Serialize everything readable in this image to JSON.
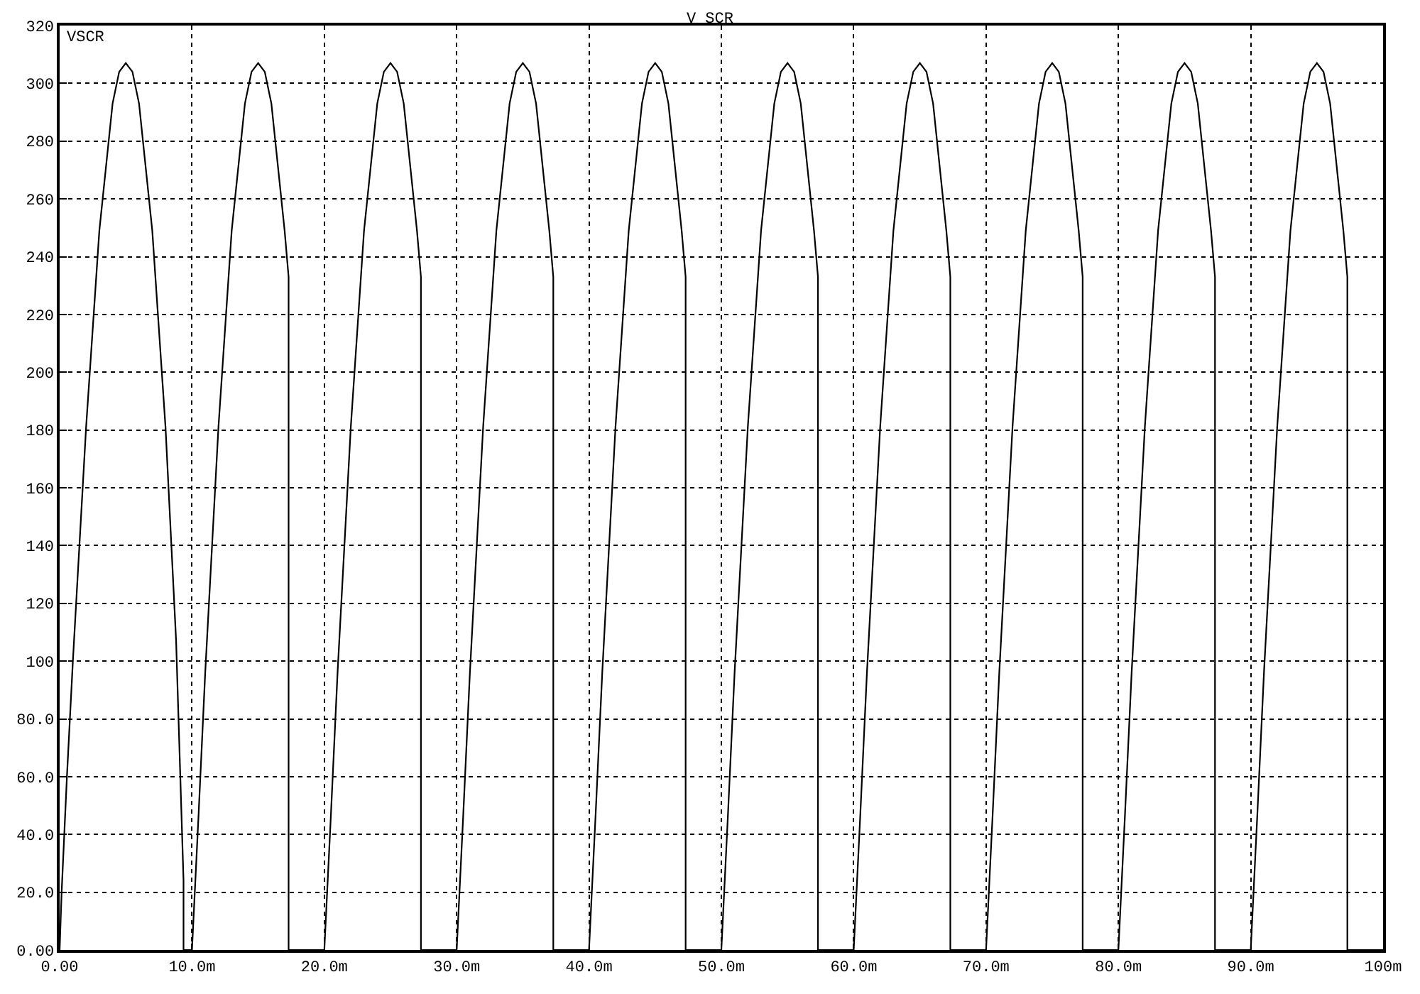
{
  "chart_data": {
    "type": "line",
    "title": "V SCR",
    "xlim": [
      0,
      100
    ],
    "ylim": [
      0,
      320
    ],
    "xticks": [
      {
        "value": 0,
        "label": "0.00"
      },
      {
        "value": 10,
        "label": "10.0m"
      },
      {
        "value": 20,
        "label": "20.0m"
      },
      {
        "value": 30,
        "label": "30.0m"
      },
      {
        "value": 40,
        "label": "40.0m"
      },
      {
        "value": 50,
        "label": "50.0m"
      },
      {
        "value": 60,
        "label": "60.0m"
      },
      {
        "value": 70,
        "label": "70.0m"
      },
      {
        "value": 80,
        "label": "80.0m"
      },
      {
        "value": 90,
        "label": "90.0m"
      },
      {
        "value": 100,
        "label": "100m"
      }
    ],
    "yticks": [
      {
        "value": 0,
        "label": "0.00"
      },
      {
        "value": 20,
        "label": "20.0"
      },
      {
        "value": 40,
        "label": "40.0"
      },
      {
        "value": 60,
        "label": "60.0"
      },
      {
        "value": 80,
        "label": "80.0"
      },
      100,
      120,
      140,
      160,
      180,
      200,
      220,
      240,
      260,
      280,
      300,
      320
    ],
    "grid": true,
    "series": [
      {
        "name": "VSCR",
        "color": "#000000",
        "x": [
          0,
          0.15,
          0.35,
          0.55,
          1,
          2,
          3,
          4,
          4.5,
          5,
          5.5,
          6,
          7,
          8,
          8.8,
          9.36,
          9.36,
          10,
          10.5,
          11,
          12,
          13,
          14,
          14.5,
          15,
          15.5,
          16,
          17,
          17.3,
          17.3,
          20,
          20.5,
          21,
          22,
          23,
          24,
          24.5,
          25,
          25.5,
          26,
          27,
          27.3,
          27.3,
          30,
          30.5,
          31,
          32,
          33,
          34,
          34.5,
          35,
          35.5,
          36,
          37,
          37.3,
          37.3,
          40,
          40.5,
          41,
          42,
          43,
          44,
          44.5,
          45,
          45.5,
          46,
          47,
          47.3,
          47.3,
          50,
          50.5,
          51,
          52,
          53,
          54,
          54.5,
          55,
          55.5,
          56,
          57,
          57.3,
          57.3,
          60,
          60.5,
          61,
          62,
          63,
          64,
          64.5,
          65,
          65.5,
          66,
          67,
          67.3,
          67.3,
          70,
          70.5,
          71,
          72,
          73,
          74,
          74.5,
          75,
          75.5,
          76,
          77,
          77.3,
          77.3,
          80,
          80.5,
          81,
          82,
          83,
          84,
          84.5,
          85,
          85.5,
          86,
          87,
          87.3,
          87.3,
          90,
          90.5,
          91,
          92,
          93,
          94,
          94.5,
          95,
          95.5,
          96,
          97,
          97.3,
          97.3,
          100
        ],
        "values": [
          0,
          20,
          40,
          60,
          100,
          181,
          249,
          293,
          304,
          307,
          304,
          293,
          249,
          181,
          107,
          24,
          0,
          0,
          47,
          96,
          181,
          249,
          293,
          304,
          307,
          304,
          293,
          249,
          233,
          0,
          0,
          47,
          96,
          181,
          249,
          293,
          304,
          307,
          304,
          293,
          249,
          233,
          0,
          0,
          47,
          96,
          181,
          249,
          293,
          304,
          307,
          304,
          293,
          249,
          233,
          0,
          0,
          47,
          96,
          181,
          249,
          293,
          304,
          307,
          304,
          293,
          249,
          233,
          0,
          0,
          47,
          96,
          181,
          249,
          293,
          304,
          307,
          304,
          293,
          249,
          233,
          0,
          0,
          47,
          96,
          181,
          249,
          293,
          304,
          307,
          304,
          293,
          249,
          233,
          0,
          0,
          47,
          96,
          181,
          249,
          293,
          304,
          307,
          304,
          293,
          249,
          233,
          0,
          0,
          47,
          96,
          181,
          249,
          293,
          304,
          307,
          304,
          293,
          249,
          233,
          0,
          0,
          47,
          96,
          181,
          249,
          293,
          304,
          307,
          304,
          293,
          249,
          233,
          0,
          0
        ]
      }
    ]
  }
}
